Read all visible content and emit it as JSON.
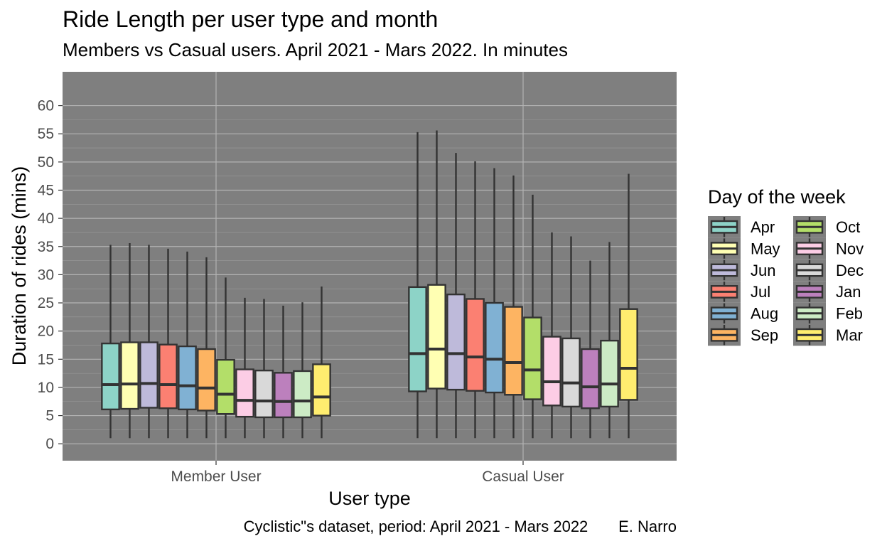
{
  "chart_data": {
    "type": "boxplot",
    "title": "Ride Length per user type and month",
    "subtitle": "Members vs Casual users. April 2021 - Mars 2022. In minutes",
    "xlabel": "User type",
    "ylabel": "Duration of rides (mins)",
    "caption": "Cyclistic\"s dataset, period: April 2021 - Mars 2022       E. Narro",
    "categories": [
      "Member User",
      "Casual User"
    ],
    "ylim": [
      -3,
      66
    ],
    "y_ticks": [
      "0",
      "5",
      "10",
      "15",
      "20",
      "25",
      "30",
      "35",
      "40",
      "45",
      "50",
      "55",
      "60"
    ],
    "y_tick_values": [
      0,
      5,
      10,
      15,
      20,
      25,
      30,
      35,
      40,
      45,
      50,
      55,
      60
    ],
    "grid": true,
    "panel_background": "#7f7f7f",
    "legend": {
      "title": "Day of the week",
      "placement": "right",
      "columns": 2
    },
    "series": [
      {
        "name": "Apr",
        "color": "#8dd3c7",
        "boxes": [
          {
            "min": 1,
            "q1": 6.1,
            "median": 10.5,
            "q3": 17.8,
            "max": 35.3
          },
          {
            "min": 1,
            "q1": 9.3,
            "median": 16.0,
            "q3": 27.8,
            "max": 55.3
          }
        ]
      },
      {
        "name": "May",
        "color": "#ffffb3",
        "boxes": [
          {
            "min": 1,
            "q1": 6.2,
            "median": 10.6,
            "q3": 18.0,
            "max": 35.6
          },
          {
            "min": 1,
            "q1": 9.8,
            "median": 16.8,
            "q3": 28.2,
            "max": 55.6
          }
        ]
      },
      {
        "name": "Jun",
        "color": "#bebada",
        "boxes": [
          {
            "min": 1,
            "q1": 6.4,
            "median": 10.7,
            "q3": 18.0,
            "max": 35.3
          },
          {
            "min": 1,
            "q1": 9.6,
            "median": 16.0,
            "q3": 26.5,
            "max": 51.6
          }
        ]
      },
      {
        "name": "Jul",
        "color": "#fb8072",
        "boxes": [
          {
            "min": 1,
            "q1": 6.3,
            "median": 10.5,
            "q3": 17.6,
            "max": 34.6
          },
          {
            "min": 1,
            "q1": 9.4,
            "median": 15.4,
            "q3": 25.7,
            "max": 50.1
          }
        ]
      },
      {
        "name": "Aug",
        "color": "#80b1d3",
        "boxes": [
          {
            "min": 1,
            "q1": 6.1,
            "median": 10.3,
            "q3": 17.3,
            "max": 34.1
          },
          {
            "min": 1,
            "q1": 9.1,
            "median": 15.0,
            "q3": 25.0,
            "max": 48.9
          }
        ]
      },
      {
        "name": "Sep",
        "color": "#fdb462",
        "boxes": [
          {
            "min": 1,
            "q1": 5.9,
            "median": 9.9,
            "q3": 16.8,
            "max": 33.1
          },
          {
            "min": 1,
            "q1": 8.7,
            "median": 14.4,
            "q3": 24.3,
            "max": 47.6
          }
        ]
      },
      {
        "name": "Oct",
        "color": "#b3de69",
        "boxes": [
          {
            "min": 1,
            "q1": 5.3,
            "median": 8.8,
            "q3": 14.9,
            "max": 29.5
          },
          {
            "min": 1,
            "q1": 7.9,
            "median": 13.1,
            "q3": 22.4,
            "max": 44.2
          }
        ]
      },
      {
        "name": "Nov",
        "color": "#fccde5",
        "boxes": [
          {
            "min": 1,
            "q1": 4.8,
            "median": 7.7,
            "q3": 13.2,
            "max": 25.9
          },
          {
            "min": 1,
            "q1": 6.8,
            "median": 11.0,
            "q3": 19.0,
            "max": 37.5
          }
        ]
      },
      {
        "name": "Dec",
        "color": "#d9d9d9",
        "boxes": [
          {
            "min": 1,
            "q1": 4.7,
            "median": 7.6,
            "q3": 13.0,
            "max": 25.7
          },
          {
            "min": 1,
            "q1": 6.6,
            "median": 10.8,
            "q3": 18.7,
            "max": 36.8
          }
        ]
      },
      {
        "name": "Jan",
        "color": "#bc80bd",
        "boxes": [
          {
            "min": 1,
            "q1": 4.7,
            "median": 7.5,
            "q3": 12.6,
            "max": 24.5
          },
          {
            "min": 1,
            "q1": 6.3,
            "median": 10.1,
            "q3": 16.8,
            "max": 32.5
          }
        ]
      },
      {
        "name": "Feb",
        "color": "#ccebc5",
        "boxes": [
          {
            "min": 1,
            "q1": 4.7,
            "median": 7.6,
            "q3": 12.9,
            "max": 25.1
          },
          {
            "min": 1,
            "q1": 6.6,
            "median": 10.6,
            "q3": 18.3,
            "max": 35.8
          }
        ]
      },
      {
        "name": "Mar",
        "color": "#ffed6f",
        "boxes": [
          {
            "min": 1,
            "q1": 5.0,
            "median": 8.3,
            "q3": 14.1,
            "max": 27.9
          },
          {
            "min": 1,
            "q1": 7.8,
            "median": 13.4,
            "q3": 23.9,
            "max": 47.9
          }
        ]
      }
    ]
  }
}
